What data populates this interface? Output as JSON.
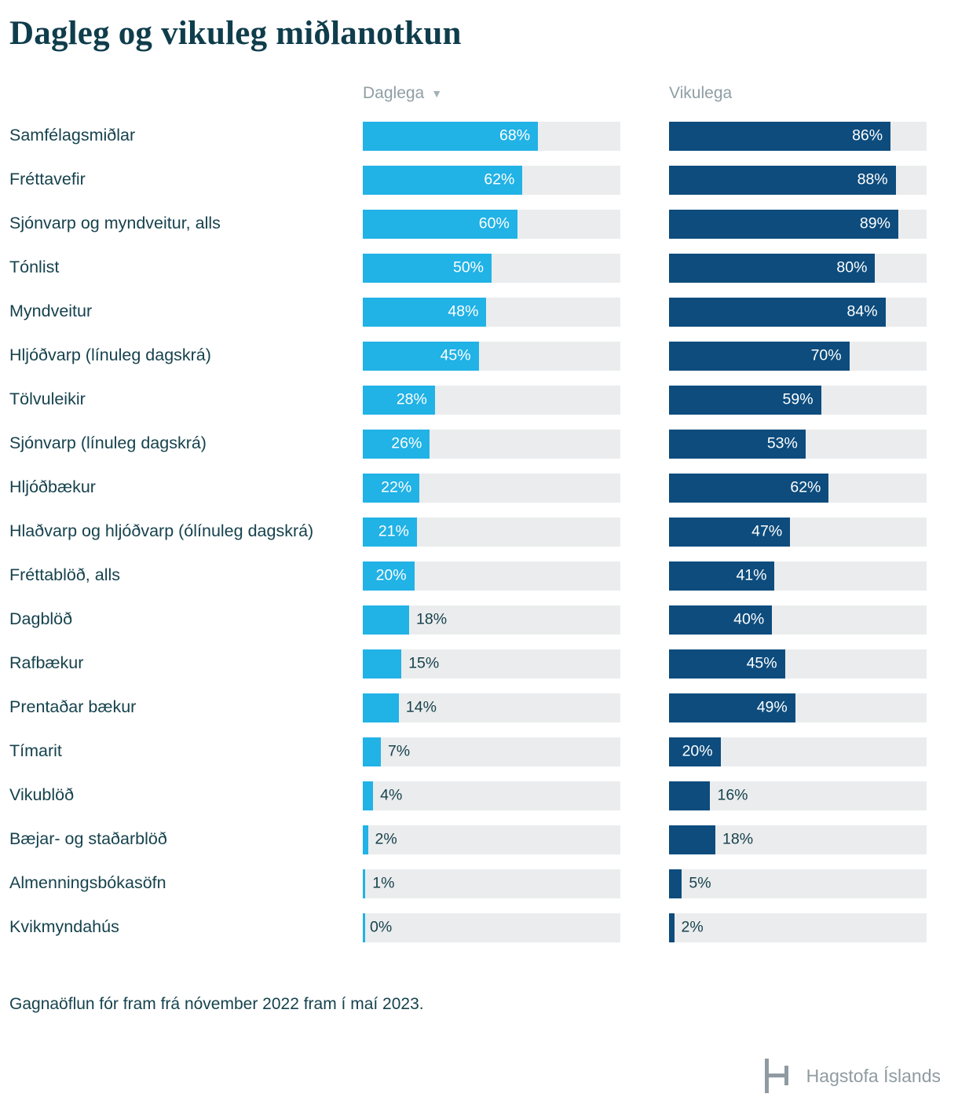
{
  "title": "Dagleg og vikuleg miðlanotkun",
  "columns": {
    "daily": "Daglega",
    "weekly": "Vikulega",
    "sort_icon": "▼"
  },
  "chart_data": {
    "type": "bar",
    "orientation": "horizontal",
    "title": "Dagleg og vikuleg miðlanotkun",
    "categories": [
      "Samfélagsmiðlar",
      "Fréttavefir",
      "Sjónvarp og myndveitur, alls",
      "Tónlist",
      "Myndveitur",
      "Hljóðvarp (línuleg dagskrá)",
      "Tölvuleikir",
      "Sjónvarp (línuleg dagskrá)",
      "Hljóðbækur",
      "Hlaðvarp og hljóðvarp (ólínuleg dagskrá)",
      "Fréttablöð, alls",
      "Dagblöð",
      "Rafbækur",
      "Prentaðar bækur",
      "Tímarit",
      "Vikublöð",
      "Bæjar- og staðarblöð",
      "Almenningsbókasöfn",
      "Kvikmyndahús"
    ],
    "series": [
      {
        "name": "Daglega",
        "color": "#21b2e6",
        "values": [
          68,
          62,
          60,
          50,
          48,
          45,
          28,
          26,
          22,
          21,
          20,
          18,
          15,
          14,
          7,
          4,
          2,
          1,
          0
        ]
      },
      {
        "name": "Vikulega",
        "color": "#0d4c7d",
        "values": [
          86,
          88,
          89,
          80,
          84,
          70,
          59,
          53,
          62,
          47,
          41,
          40,
          45,
          49,
          20,
          16,
          18,
          5,
          2
        ]
      }
    ],
    "xlim": [
      0,
      100
    ],
    "value_suffix": "%",
    "track_color": "#ebeced",
    "sorted_by": "Daglega"
  },
  "footer": {
    "note": "Gagnaöflun fór fram frá nóvember 2022 fram í maí 2023.",
    "brand": "Hagstofa Íslands"
  }
}
